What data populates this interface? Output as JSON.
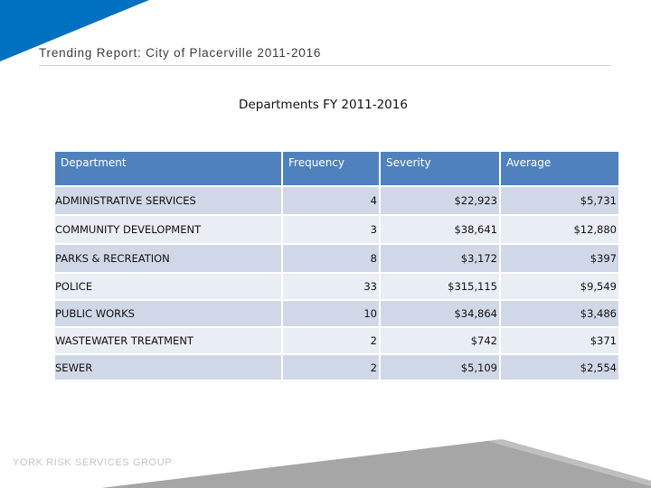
{
  "slide": {
    "title": "Trending Report: City of Placerville 2011-2016",
    "table_title": "Departments FY 2011-2016",
    "footer_brand": "YORK RISK SERVICES GROUP"
  },
  "colors": {
    "accent_blue": "#0070c0",
    "header_blue": "#4f81bd",
    "row_band_dark": "#d0d8e8",
    "row_band_light": "#e9edf4",
    "footer_gray": "#a6a6a6"
  },
  "table": {
    "headers": [
      "Department",
      "Frequency",
      "Severity",
      "Average"
    ],
    "rows": [
      [
        "ADMINISTRATIVE SERVICES",
        "4",
        "$22,923",
        "$5,731"
      ],
      [
        "COMMUNITY DEVELOPMENT",
        "3",
        "$38,641",
        "$12,880"
      ],
      [
        "PARKS & RECREATION",
        "8",
        "$3,172",
        "$397"
      ],
      [
        "POLICE",
        "33",
        "$315,115",
        "$9,549"
      ],
      [
        "PUBLIC WORKS",
        "10",
        "$34,864",
        "$3,486"
      ],
      [
        "WASTEWATER TREATMENT",
        "2",
        "$742",
        "$371"
      ],
      [
        "SEWER",
        "2",
        "$5,109",
        "$2,554"
      ]
    ]
  }
}
